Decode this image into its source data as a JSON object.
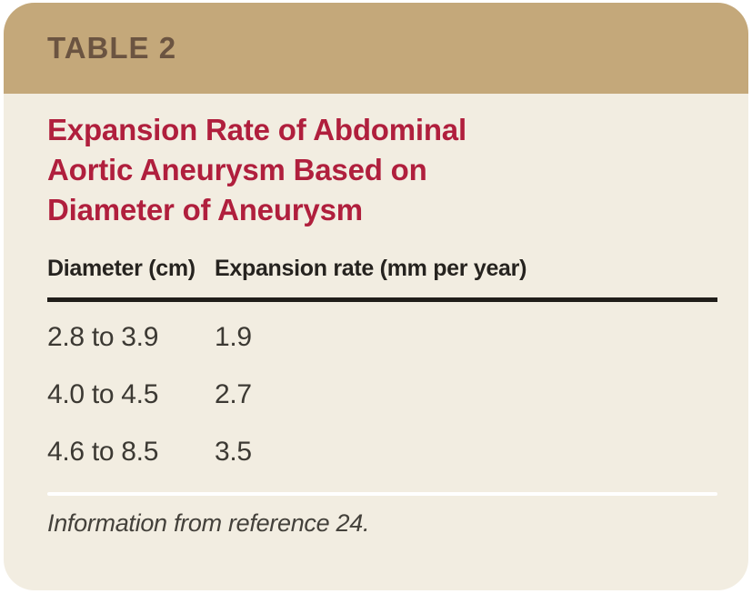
{
  "header": {
    "table_label": "TABLE 2",
    "title": "Expansion Rate of Abdominal Aortic Aneurysm Based on Diameter of Aneurysm"
  },
  "table": {
    "columns": [
      "Diameter (cm)",
      "Expansion rate (mm per year)"
    ],
    "rows": [
      {
        "diameter": "2.8 to 3.9",
        "rate": "1.9"
      },
      {
        "diameter": "4.0 to 4.5",
        "rate": "2.7"
      },
      {
        "diameter": "4.6 to 8.5",
        "rate": "3.5"
      }
    ]
  },
  "footnote": "Information from reference 24.",
  "colors": {
    "band_background": "#c4a87a",
    "band_text": "#6b5441",
    "card_background": "#f2ede1",
    "title_accent": "#b01f3d",
    "rule_dark": "#211e1a",
    "body_text": "#3c3933",
    "page_background": "#ffffff"
  }
}
